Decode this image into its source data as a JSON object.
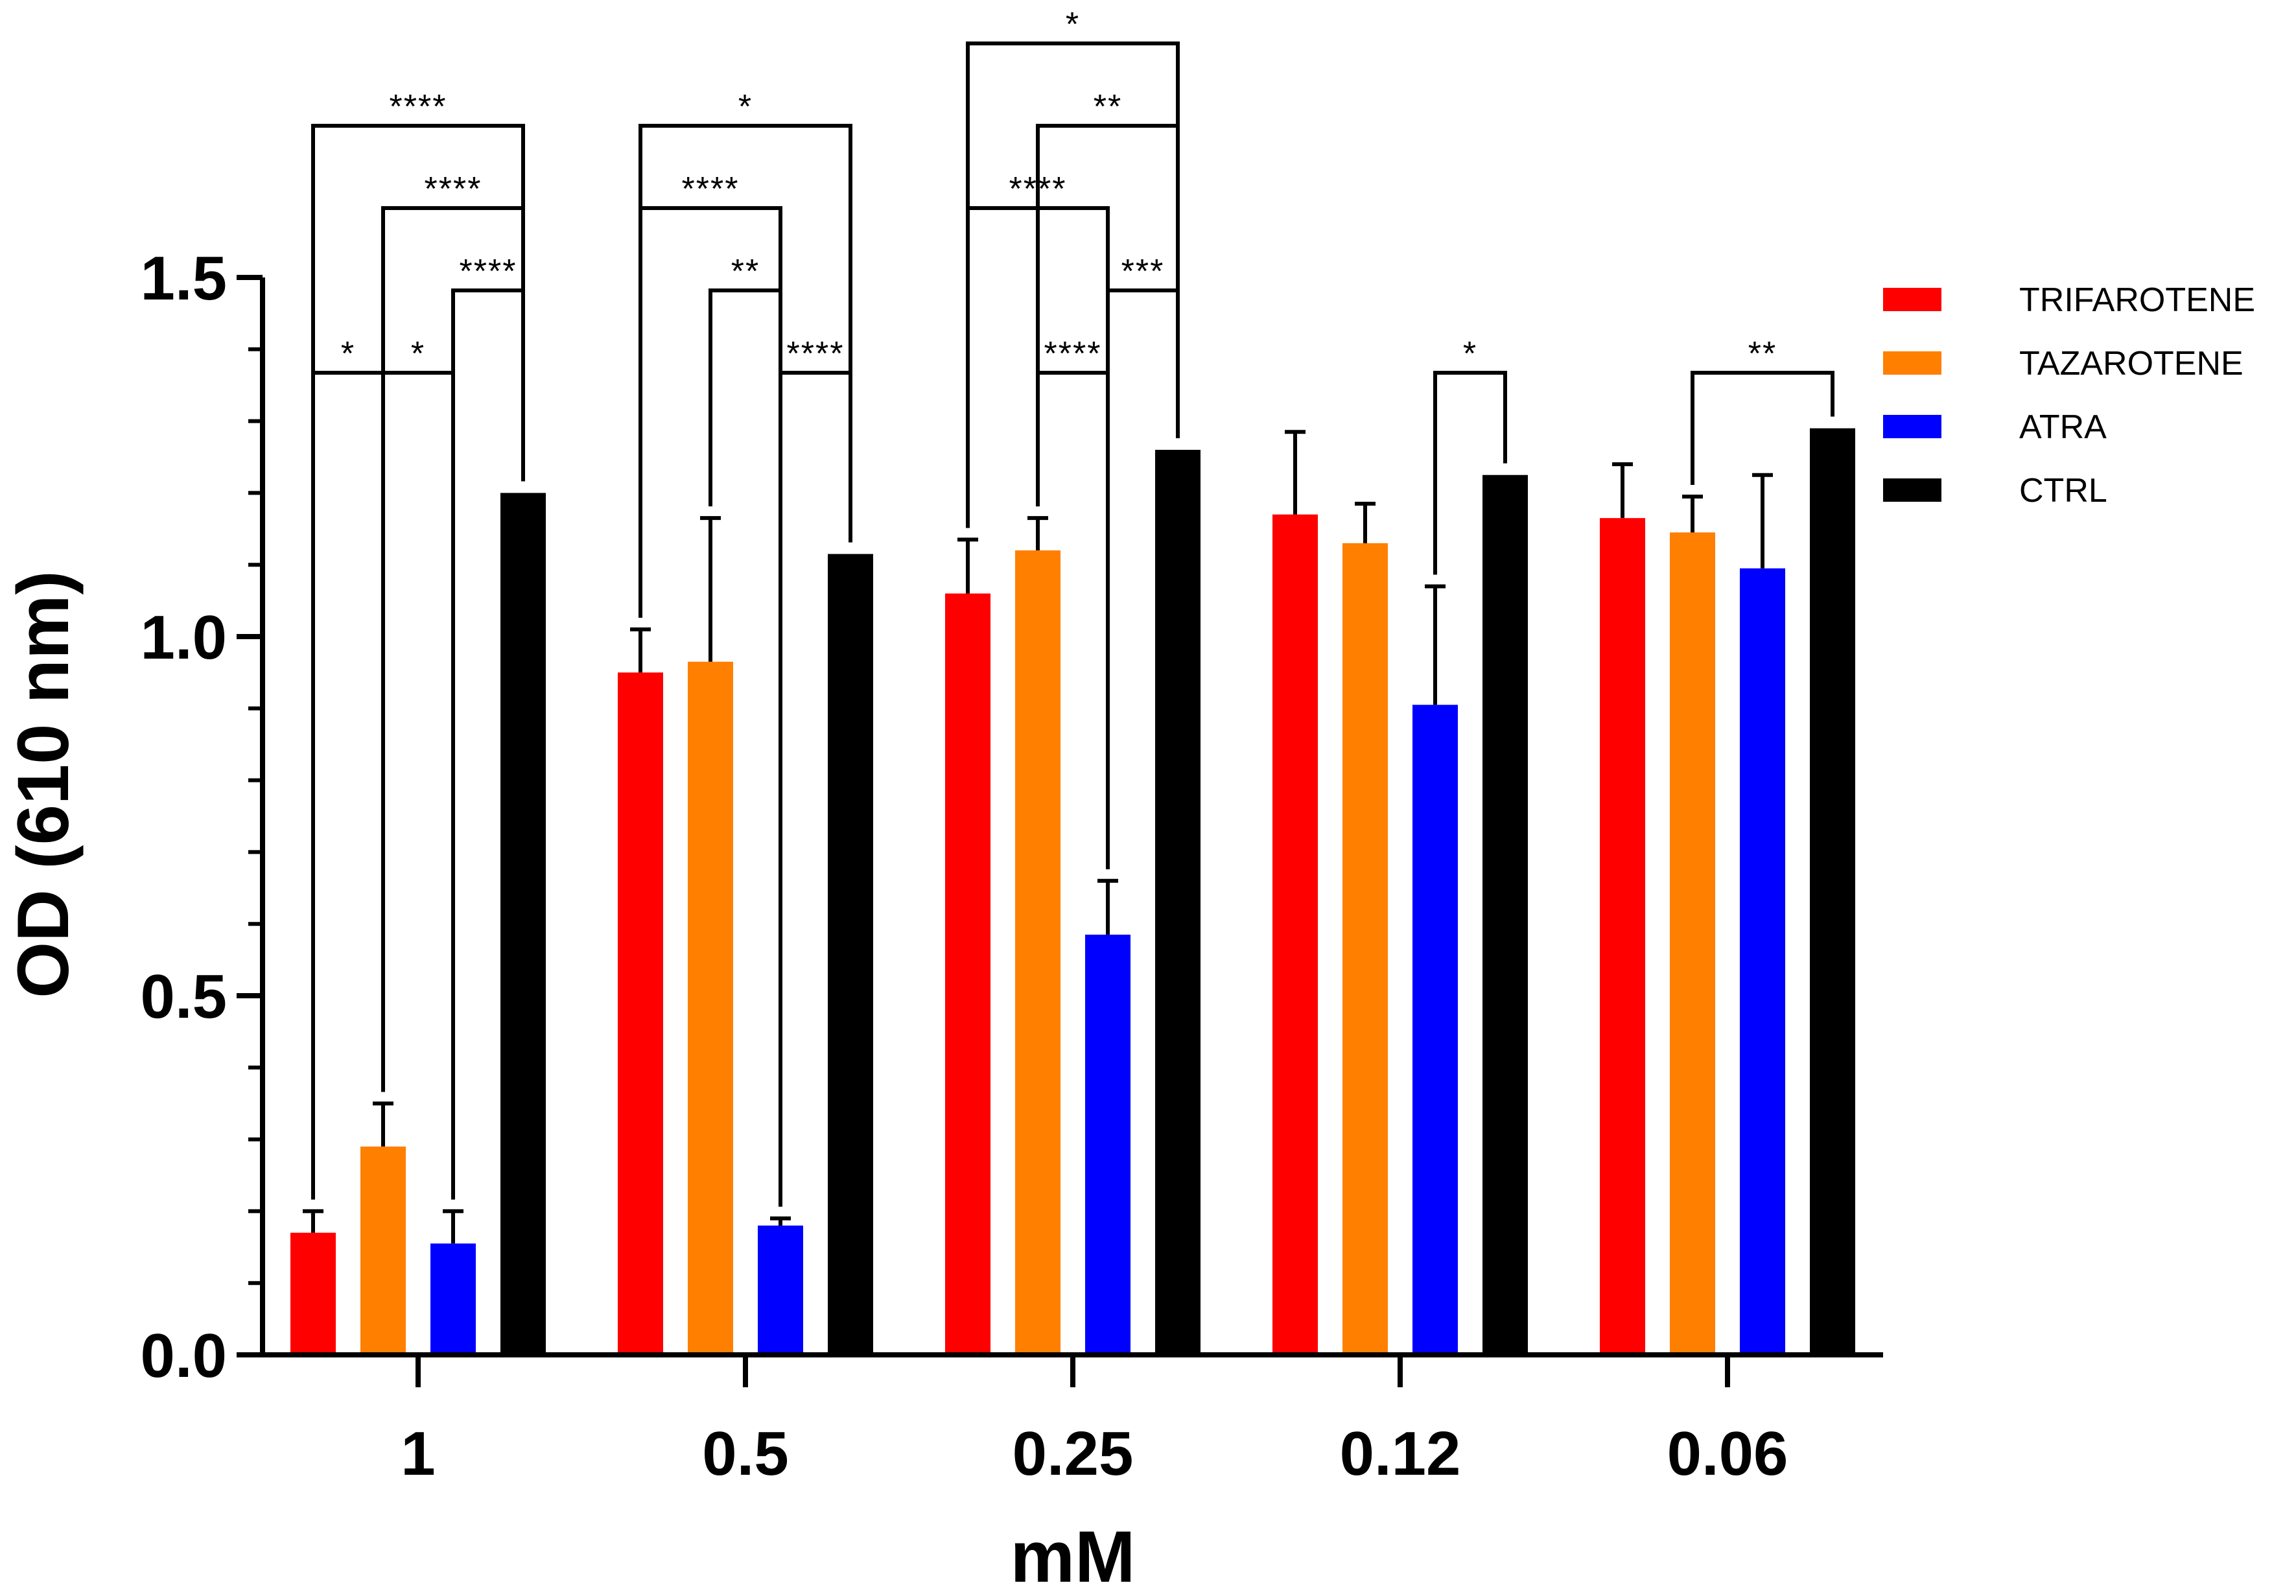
{
  "chart_data": {
    "type": "bar",
    "title": "",
    "xlabel": "mM",
    "ylabel": "OD (610 nm)",
    "ylim": [
      0,
      1.5
    ],
    "yticks": [
      "0.0",
      "0.5",
      "1.0",
      "1.5"
    ],
    "minor_tick_step": 0.1,
    "grid": false,
    "legend_position": "top-right",
    "categories": [
      "1",
      "0.5",
      "0.25",
      "0.12",
      "0.06"
    ],
    "series": [
      {
        "name": "TRIFAROTENE",
        "color": "#ff0000",
        "values": [
          0.17,
          0.95,
          1.06,
          1.17,
          1.165
        ],
        "errors": [
          0.03,
          0.06,
          0.075,
          0.115,
          0.075
        ]
      },
      {
        "name": "TAZAROTENE",
        "color": "#ff7f00",
        "values": [
          0.29,
          0.965,
          1.12,
          1.13,
          1.145
        ],
        "errors": [
          0.06,
          0.2,
          0.045,
          0.055,
          0.05
        ]
      },
      {
        "name": "ATRA",
        "color": "#0000ff",
        "values": [
          0.155,
          0.18,
          0.585,
          0.905,
          1.095
        ],
        "errors": [
          0.045,
          0.01,
          0.075,
          0.165,
          0.13
        ]
      },
      {
        "name": "CTRL",
        "color": "#000000",
        "values": [
          1.2,
          1.115,
          1.26,
          1.225,
          1.29
        ],
        "errors": [
          0,
          0,
          0,
          0,
          0
        ]
      }
    ],
    "annotations": [
      {
        "category": 0,
        "from": 0,
        "to": 3,
        "level": 7,
        "label": "****"
      },
      {
        "category": 0,
        "from": 1,
        "to": 3,
        "level": 6,
        "label": "****"
      },
      {
        "category": 0,
        "from": 2,
        "to": 3,
        "level": 5,
        "label": "****"
      },
      {
        "category": 0,
        "from": 0,
        "to": 1,
        "level": 4,
        "label": "*"
      },
      {
        "category": 0,
        "from": 1,
        "to": 2,
        "level": 4,
        "label": "*"
      },
      {
        "category": 1,
        "from": 0,
        "to": 3,
        "level": 7,
        "label": "*"
      },
      {
        "category": 1,
        "from": 0,
        "to": 2,
        "level": 6,
        "label": "****"
      },
      {
        "category": 1,
        "from": 1,
        "to": 2,
        "level": 5,
        "label": "**"
      },
      {
        "category": 1,
        "from": 2,
        "to": 3,
        "level": 4,
        "label": "****"
      },
      {
        "category": 2,
        "from": 0,
        "to": 3,
        "level": 8,
        "label": "*"
      },
      {
        "category": 2,
        "from": 1,
        "to": 3,
        "level": 7,
        "label": "**"
      },
      {
        "category": 2,
        "from": 0,
        "to": 2,
        "level": 6,
        "label": "****"
      },
      {
        "category": 2,
        "from": 2,
        "to": 3,
        "level": 5,
        "label": "***"
      },
      {
        "category": 2,
        "from": 1,
        "to": 2,
        "level": 4,
        "label": "****"
      },
      {
        "category": 3,
        "from": 2,
        "to": 3,
        "level": 4,
        "label": "*"
      },
      {
        "category": 4,
        "from": 1,
        "to": 3,
        "level": 4,
        "label": "**"
      }
    ]
  }
}
